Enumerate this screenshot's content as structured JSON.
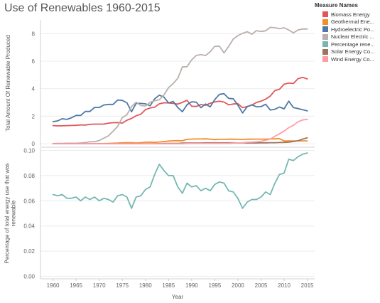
{
  "title": "Use of Renewables 1960-2015",
  "legend": {
    "title": "Measure Names",
    "items": [
      {
        "label": "Biomass Energy",
        "color": "#e15759"
      },
      {
        "label": "Geothermal Ene...",
        "color": "#f28e2b"
      },
      {
        "label": "Hydroelectric Po...",
        "color": "#4e79a7"
      },
      {
        "label": "Nuclear Electric ...",
        "color": "#bab0ac"
      },
      {
        "label": "Percentage rene...",
        "color": "#76b7b2"
      },
      {
        "label": "Solar Energy Co...",
        "color": "#9c755f"
      },
      {
        "label": "Wind Energy Co...",
        "color": "#ff9da7"
      }
    ]
  },
  "chart_data": [
    {
      "type": "line",
      "ylabel": "Total Amount Of Renewable Produced",
      "xlabel": "Year",
      "x_ticks": [
        1960,
        1965,
        1970,
        1975,
        1980,
        1985,
        1990,
        1995,
        2000,
        2005,
        2010,
        2015
      ],
      "ylim": [
        -0.2,
        9.0
      ],
      "y_ticks": [
        0,
        2,
        4,
        6,
        8
      ],
      "x_start": 1960,
      "grid": true,
      "series": [
        {
          "name": "Biomass Energy",
          "color": "#e15759",
          "values": [
            1.32,
            1.3,
            1.31,
            1.32,
            1.33,
            1.34,
            1.37,
            1.36,
            1.41,
            1.43,
            1.43,
            1.43,
            1.5,
            1.53,
            1.54,
            1.5,
            1.71,
            1.84,
            2.04,
            2.15,
            2.48,
            2.6,
            2.66,
            2.9,
            2.98,
            2.97,
            2.93,
            2.88,
            3.01,
            3.16,
            2.73,
            2.71,
            2.85,
            2.8,
            2.94,
            3.04,
            3.1,
            3.03,
            2.83,
            2.89,
            2.91,
            2.62,
            2.71,
            2.81,
            3.0,
            3.1,
            3.24,
            3.47,
            3.87,
            3.96,
            4.33,
            4.41,
            4.38,
            4.73,
            4.83,
            4.71
          ]
        },
        {
          "name": "Geothermal Energy",
          "color": "#f28e2b",
          "values": [
            0.0,
            0.0,
            0.0,
            0.0,
            0.0,
            0.0,
            0.0,
            0.0,
            0.0,
            0.0,
            0.01,
            0.01,
            0.03,
            0.04,
            0.05,
            0.07,
            0.08,
            0.08,
            0.06,
            0.08,
            0.11,
            0.12,
            0.1,
            0.13,
            0.16,
            0.2,
            0.22,
            0.23,
            0.22,
            0.32,
            0.34,
            0.35,
            0.35,
            0.36,
            0.34,
            0.3,
            0.32,
            0.32,
            0.33,
            0.33,
            0.32,
            0.31,
            0.33,
            0.33,
            0.34,
            0.34,
            0.34,
            0.35,
            0.36,
            0.37,
            0.21,
            0.21,
            0.21,
            0.21,
            0.21,
            0.21
          ]
        },
        {
          "name": "Hydroelectric Power",
          "color": "#4e79a7",
          "values": [
            1.61,
            1.66,
            1.82,
            1.77,
            1.89,
            2.06,
            2.06,
            2.35,
            2.35,
            2.65,
            2.63,
            2.82,
            2.86,
            2.86,
            3.18,
            3.15,
            2.98,
            2.33,
            2.94,
            2.93,
            2.9,
            2.76,
            3.27,
            3.53,
            3.39,
            2.97,
            3.07,
            2.64,
            2.33,
            2.84,
            3.05,
            3.02,
            2.62,
            2.89,
            2.68,
            3.21,
            3.59,
            3.64,
            3.3,
            3.27,
            2.81,
            2.24,
            2.69,
            2.83,
            2.69,
            2.7,
            2.87,
            2.45,
            2.51,
            2.67,
            2.54,
            3.1,
            2.63,
            2.56,
            2.47,
            2.39
          ]
        },
        {
          "name": "Nuclear Electric Power",
          "color": "#bab0ac",
          "values": [
            0.01,
            0.02,
            0.03,
            0.04,
            0.04,
            0.04,
            0.06,
            0.09,
            0.14,
            0.15,
            0.24,
            0.41,
            0.58,
            0.91,
            1.27,
            1.9,
            2.11,
            2.7,
            3.02,
            2.78,
            2.74,
            3.01,
            3.13,
            3.2,
            3.55,
            4.08,
            4.38,
            4.75,
            5.59,
            5.6,
            6.1,
            6.42,
            6.48,
            6.41,
            6.69,
            7.08,
            7.09,
            6.6,
            7.07,
            7.61,
            7.86,
            8.03,
            8.14,
            7.96,
            8.22,
            8.16,
            8.21,
            8.46,
            8.43,
            8.36,
            8.43,
            8.27,
            8.06,
            8.27,
            8.34,
            8.34
          ]
        },
        {
          "name": "Solar Energy Consumption",
          "color": "#9c755f",
          "values": [
            0,
            0,
            0,
            0,
            0,
            0,
            0,
            0,
            0,
            0,
            0,
            0,
            0,
            0,
            0,
            0,
            0,
            0,
            0,
            0,
            0,
            0,
            0,
            0.01,
            0.02,
            0.02,
            0.03,
            0.03,
            0.05,
            0.06,
            0.06,
            0.06,
            0.06,
            0.07,
            0.07,
            0.07,
            0.07,
            0.07,
            0.07,
            0.07,
            0.06,
            0.06,
            0.06,
            0.06,
            0.06,
            0.07,
            0.07,
            0.08,
            0.08,
            0.09,
            0.1,
            0.12,
            0.16,
            0.22,
            0.34,
            0.43
          ]
        },
        {
          "name": "Wind Energy Consumption",
          "color": "#ff9da7",
          "values": [
            0,
            0,
            0,
            0,
            0,
            0,
            0,
            0,
            0,
            0,
            0,
            0,
            0,
            0,
            0,
            0,
            0,
            0,
            0,
            0,
            0,
            0,
            0,
            0,
            0,
            0,
            0,
            0,
            0,
            0.02,
            0.03,
            0.03,
            0.03,
            0.03,
            0.03,
            0.03,
            0.03,
            0.03,
            0.03,
            0.05,
            0.06,
            0.07,
            0.11,
            0.12,
            0.14,
            0.18,
            0.26,
            0.34,
            0.55,
            0.72,
            0.92,
            1.17,
            1.34,
            1.6,
            1.73,
            1.78
          ]
        }
      ]
    },
    {
      "type": "line",
      "ylabel": "Percentage of total energy use that was renewable",
      "xlabel": "Year",
      "ylim": [
        -0.002,
        0.102
      ],
      "y_ticks": [
        0.0,
        0.02,
        0.04,
        0.06,
        0.08,
        0.1
      ],
      "y_tick_labels": [
        "0.00",
        "0.02",
        "0.04",
        "0.06",
        "0.08",
        "0.10"
      ],
      "x_start": 1960,
      "grid": true,
      "series": [
        {
          "name": "Percentage renewable",
          "color": "#76b7b2",
          "values": [
            0.065,
            0.064,
            0.065,
            0.062,
            0.062,
            0.063,
            0.06,
            0.063,
            0.061,
            0.063,
            0.06,
            0.062,
            0.061,
            0.059,
            0.064,
            0.065,
            0.063,
            0.054,
            0.063,
            0.064,
            0.069,
            0.071,
            0.081,
            0.089,
            0.084,
            0.08,
            0.08,
            0.071,
            0.066,
            0.074,
            0.071,
            0.072,
            0.068,
            0.07,
            0.068,
            0.073,
            0.075,
            0.074,
            0.068,
            0.067,
            0.062,
            0.054,
            0.059,
            0.061,
            0.061,
            0.063,
            0.067,
            0.065,
            0.074,
            0.081,
            0.082,
            0.093,
            0.092,
            0.095,
            0.097,
            0.098
          ]
        }
      ]
    }
  ]
}
